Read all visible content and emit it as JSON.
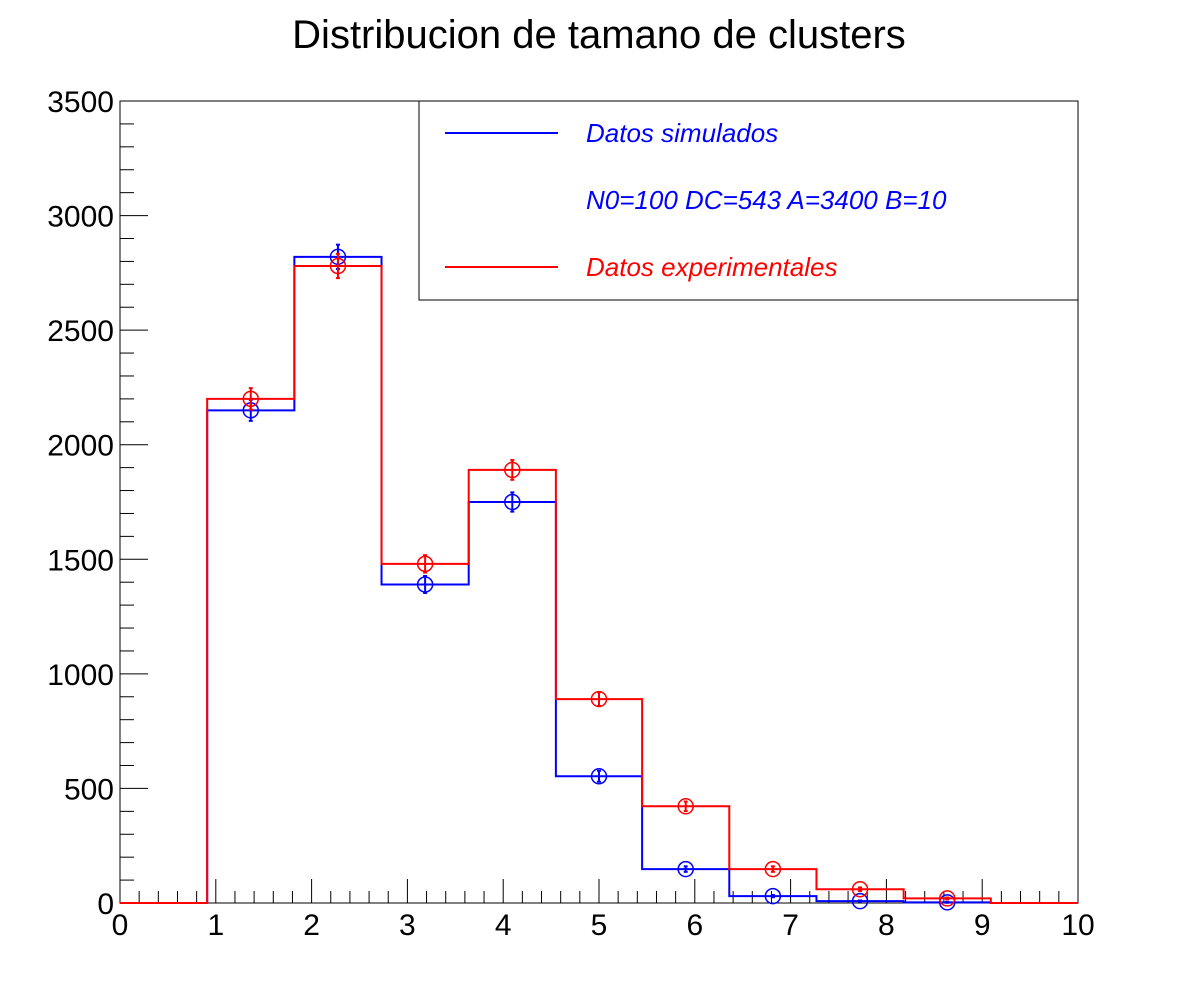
{
  "chart_data": {
    "type": "histogram",
    "title": "Distribucion de tamano de clusters",
    "xlim": [
      0,
      10
    ],
    "ylim": [
      0,
      3500
    ],
    "x_ticks": [
      "0",
      "1",
      "2",
      "3",
      "4",
      "5",
      "6",
      "7",
      "8",
      "9",
      "10"
    ],
    "y_ticks": [
      "0",
      "500",
      "1000",
      "1500",
      "2000",
      "2500",
      "3000",
      "3500"
    ],
    "bin_edges": [
      0,
      0.91,
      1.82,
      2.73,
      3.64,
      4.55,
      5.45,
      6.36,
      7.27,
      8.18,
      9.09,
      10
    ],
    "series": [
      {
        "name": "Datos simulados",
        "color": "#0000ff",
        "values": [
          0,
          2150,
          2820,
          1390,
          1750,
          553,
          148,
          30,
          8,
          3,
          0
        ],
        "errors": [
          0,
          46,
          53,
          37,
          42,
          24,
          12,
          5,
          3,
          2,
          0
        ]
      },
      {
        "name": "Datos experimentales",
        "color": "#ff0000",
        "values": [
          0,
          2200,
          2780,
          1480,
          1890,
          890,
          422,
          148,
          60,
          20,
          0
        ],
        "errors": [
          0,
          47,
          53,
          38,
          43,
          30,
          21,
          12,
          8,
          4,
          0
        ]
      }
    ],
    "legend": {
      "position": "top-right",
      "entries": [
        {
          "label": "Datos simulados",
          "color": "#0000ff",
          "kind": "line"
        },
        {
          "label": "N0=100 DC=543 A=3400 B=10",
          "color": "#0000ff",
          "kind": "text"
        },
        {
          "label": "Datos experimentales",
          "color": "#ff0000",
          "kind": "line"
        }
      ]
    }
  }
}
